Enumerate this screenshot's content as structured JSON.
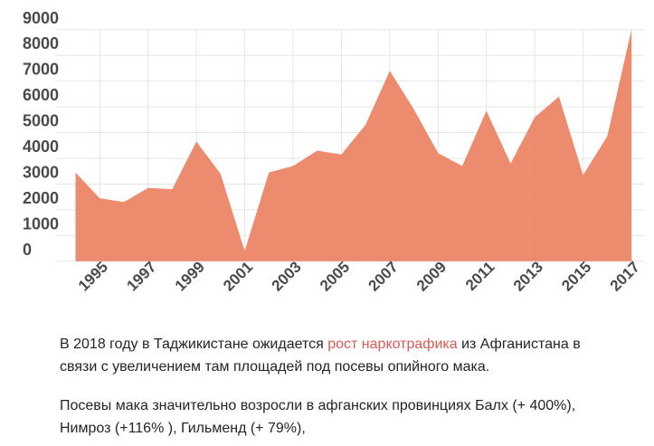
{
  "chart_data": {
    "type": "area",
    "x": [
      1994,
      1995,
      1996,
      1997,
      1998,
      1999,
      2000,
      2001,
      2002,
      2003,
      2004,
      2005,
      2006,
      2007,
      2008,
      2009,
      2010,
      2011,
      2012,
      2013,
      2014,
      2015,
      2016,
      2017
    ],
    "values": [
      3450,
      2450,
      2300,
      2850,
      2800,
      4650,
      3400,
      400,
      3450,
      3700,
      4300,
      4150,
      5300,
      7400,
      5900,
      4200,
      3700,
      5850,
      3800,
      5600,
      6400,
      3350,
      4850,
      9000
    ],
    "x_ticks": [
      1995,
      1997,
      1999,
      2001,
      2003,
      2005,
      2007,
      2009,
      2011,
      2013,
      2015,
      2017
    ],
    "y_ticks": [
      0,
      1000,
      2000,
      3000,
      4000,
      5000,
      6000,
      7000,
      8000,
      9000
    ],
    "xlim": [
      1994,
      2017
    ],
    "ylim": [
      0,
      9000
    ],
    "title": "",
    "xlabel": "",
    "ylabel": "",
    "legend": false,
    "grid": true,
    "fill_color": "#EC8264",
    "fill_opacity": 0.93,
    "grid_color": "#e6e6e6",
    "tick_color": "#4a4a4a"
  },
  "article": {
    "para1_before": "В 2018 году в Таджикистане ожидается ",
    "para1_link": "рост наркотрафика",
    "para1_after": " из Афганистана в связи с увеличением там площадей под посевы опийного мака.",
    "para2": "Посевы мака значительно возросли в афганских провинциях Балх (+ 400%), Нимроз (+116% ), Гильменд (+ 79%),",
    "link_color": "#db5853"
  }
}
